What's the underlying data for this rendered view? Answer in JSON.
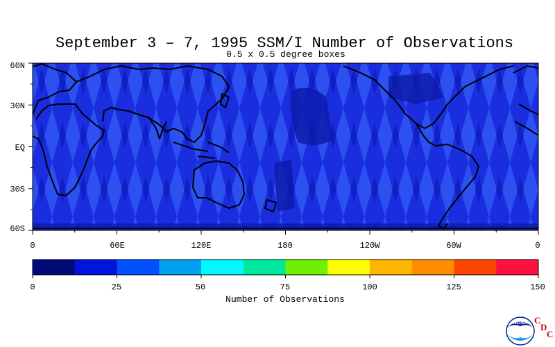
{
  "header": {
    "title": "September 3 – 7, 1995 SSM/I Number of Observations",
    "subtitle": "0.5 x 0.5 degree boxes"
  },
  "map": {
    "projection": "equirectangular",
    "lon_range": [
      0,
      360
    ],
    "lat_range": [
      -60,
      60
    ],
    "background_color": "#1a2ee0",
    "land_outline_color": "#000000",
    "lat_labels": [
      "60N",
      "30N",
      "EQ",
      "30S",
      "60S"
    ],
    "lon_labels": [
      "0",
      "60E",
      "120E",
      "180",
      "120W",
      "60W",
      "0"
    ]
  },
  "colorbar": {
    "title": "Number of Observations",
    "tick_labels": [
      "0",
      "25",
      "50",
      "75",
      "100",
      "125",
      "150"
    ],
    "min": 0,
    "max": 150,
    "bin_size": 12.5,
    "colors": [
      "#000a78",
      "#0014dc",
      "#0050ff",
      "#00a0f0",
      "#00f8ff",
      "#00e8a0",
      "#6ef000",
      "#ffff00",
      "#ffb400",
      "#ff8c00",
      "#ff4600",
      "#ff1040"
    ]
  },
  "branding": {
    "logo_text": "NOAA",
    "cdc_letters": [
      "C",
      "D",
      "C"
    ]
  }
}
